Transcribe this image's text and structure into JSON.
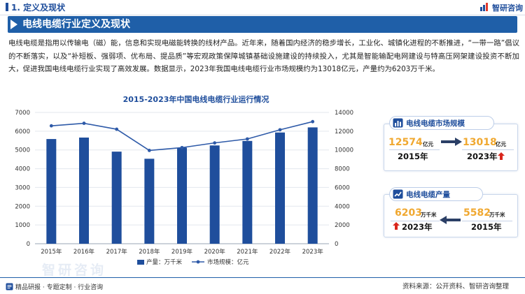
{
  "section": {
    "title": "1. 定义及现状"
  },
  "logo": {
    "text": "智研咨询"
  },
  "banner": {
    "title": "电线电缆行业定义及现状"
  },
  "intro": {
    "paragraph": "电线电缆是指用以传输电（磁）能，信息和实现电磁能转换的线材产品。近年来，随着国内经济的稳步增长，工业化、城镇化进程的不断推进，“一带一路”倡议的不断落实，以及“补短板、强弱项、优布局、提品质”等宏观政策保障城镇基础设施建设的持续投入，尤其是智能输配电网建设与特高压网架建设投资不断加大，促进我国电线电缆行业实现了高效发展。数据显示，2023年我国电线电缆行业市场规模约为13018亿元，产量约为6203万千米。"
  },
  "chart_data": {
    "type": "bar+line",
    "title": "2015-2023年中国电线电缆行业运行情况",
    "categories": [
      "2015年",
      "2016年",
      "2017年",
      "2018年",
      "2019年",
      "2020年",
      "2021年",
      "2022年",
      "2023年"
    ],
    "series": [
      {
        "name": "产量：万千米",
        "type": "bar",
        "axis": "left",
        "values": [
          5582,
          5660,
          4910,
          4530,
          5120,
          5240,
          5480,
          5930,
          6203
        ]
      },
      {
        "name": "市场规模：亿元",
        "type": "line",
        "axis": "right",
        "values": [
          12574,
          12840,
          12210,
          9950,
          10250,
          10750,
          11170,
          12150,
          13018
        ]
      }
    ],
    "y_left": {
      "min": 0,
      "max": 7000,
      "ticks": [
        "0",
        "1000",
        "2000",
        "3000",
        "4000",
        "5000",
        "6000",
        "7000"
      ]
    },
    "y_right": {
      "min": 0,
      "max": 14000,
      "ticks": [
        "0",
        "2000",
        "4000",
        "6000",
        "8000",
        "10000",
        "12000",
        "14000"
      ]
    },
    "legend_position": "bottom-center",
    "colors": {
      "bar": "#1f4e9c",
      "line": "#2e5aa8"
    }
  },
  "cards": {
    "market": {
      "title": "电线电缆市场规模",
      "from_value": "12574",
      "from_unit": "亿元",
      "from_year": "2015年",
      "to_value": "13018",
      "to_unit": "亿元",
      "to_year": "2023年"
    },
    "output": {
      "title": "电线电缆产量",
      "new_value": "6203",
      "new_unit": "万千米",
      "new_year": "2023年",
      "old_value": "5582",
      "old_unit": "万千米",
      "old_year": "2015年"
    }
  },
  "footer": {
    "left": "精品研报 · 专题定制 · 行业咨询",
    "right": "资料来源：公开资料、智研咨询整理"
  },
  "watermark": {
    "text": "智研咨询"
  }
}
